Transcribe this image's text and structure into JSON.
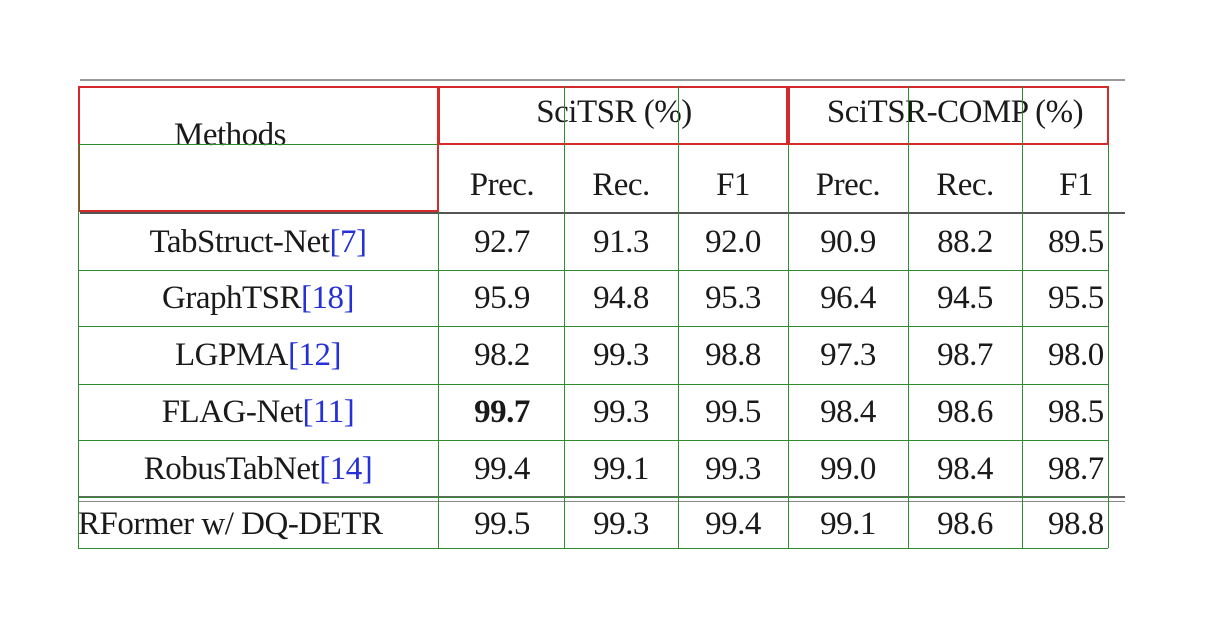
{
  "table": {
    "methods_header": "Methods",
    "groups": [
      {
        "label": "SciTSR (%)"
      },
      {
        "label": "SciTSR-COMP (%)"
      }
    ],
    "subheaders": [
      "Prec.",
      "Rec.",
      "F1",
      "Prec.",
      "Rec.",
      "F1"
    ],
    "rows": [
      {
        "method": "TabStruct-Net ",
        "cite": "[7]",
        "values": [
          "92.7",
          "91.3",
          "92.0",
          "90.9",
          "88.2",
          "89.5"
        ]
      },
      {
        "method": "GraphTSR ",
        "cite": "[18]",
        "values": [
          "95.9",
          "94.8",
          "95.3",
          "96.4",
          "94.5",
          "95.5"
        ]
      },
      {
        "method": "LGPMA ",
        "cite": "[12]",
        "values": [
          "98.2",
          "99.3",
          "98.8",
          "97.3",
          "98.7",
          "98.0"
        ]
      },
      {
        "method": "FLAG-Net ",
        "cite": "[11]",
        "values": [
          "99.7",
          "99.3",
          "99.5",
          "98.4",
          "98.6",
          "98.5"
        ],
        "bold_index": 0
      },
      {
        "method": "RobusTabNet",
        "cite": "[14]",
        "values": [
          "99.4",
          "99.1",
          "99.3",
          "99.0",
          "98.4",
          "98.7"
        ]
      },
      {
        "method": "RFormer w/ DQ-DETR",
        "cite": "",
        "values": [
          "99.5",
          "99.3",
          "99.4",
          "99.1",
          "98.6",
          "98.8"
        ]
      }
    ]
  },
  "colors": {
    "header_box": "#d42a2a",
    "cell_lines": "#2e8b2e",
    "citation": "#2531d6"
  }
}
